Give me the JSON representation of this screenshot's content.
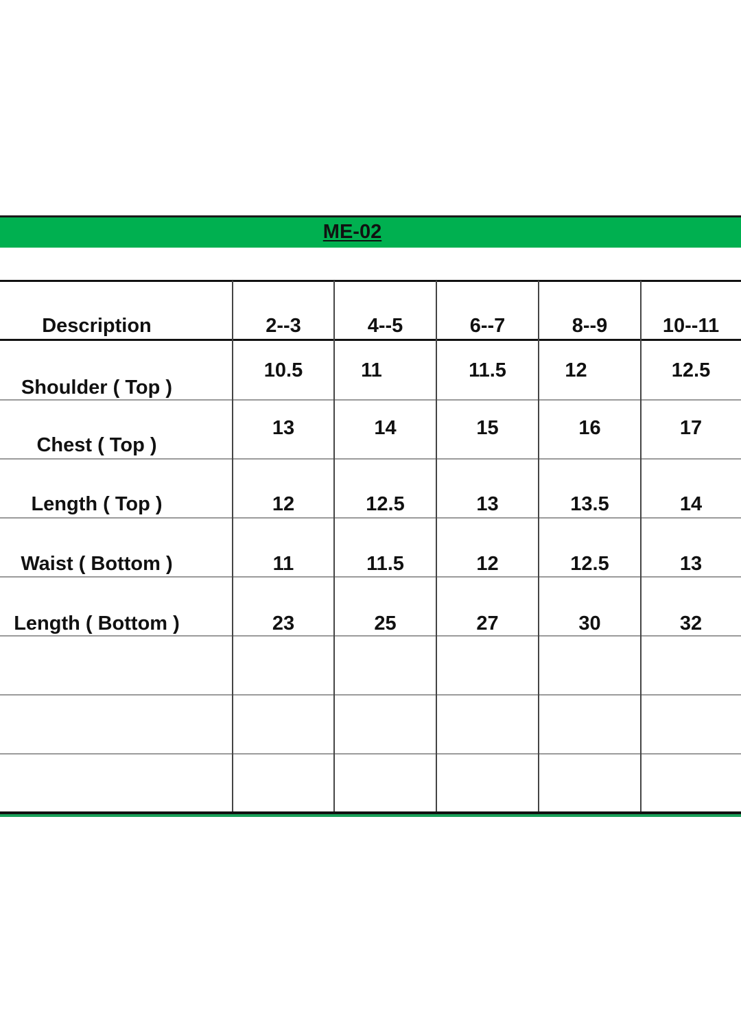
{
  "title": "ME-02",
  "colors": {
    "accent": "#00b050"
  },
  "table": {
    "headers": [
      "Description",
      "2--3",
      "4--5",
      "6--7",
      "8--9",
      "10--11"
    ],
    "rows": [
      {
        "label": "Shoulder ( Top )",
        "values": [
          "10.5",
          "11",
          "11.5",
          "12",
          "12.5"
        ]
      },
      {
        "label": "Chest ( Top )",
        "values": [
          "13",
          "14",
          "15",
          "16",
          "17"
        ]
      },
      {
        "label": "Length ( Top )",
        "values": [
          "12",
          "12.5",
          "13",
          "13.5",
          "14"
        ]
      },
      {
        "label": "Waist ( Bottom )",
        "values": [
          "11",
          "11.5",
          "12",
          "12.5",
          "13"
        ]
      },
      {
        "label": "Length ( Bottom )",
        "values": [
          "23",
          "25",
          "27",
          "30",
          "32"
        ]
      }
    ]
  }
}
